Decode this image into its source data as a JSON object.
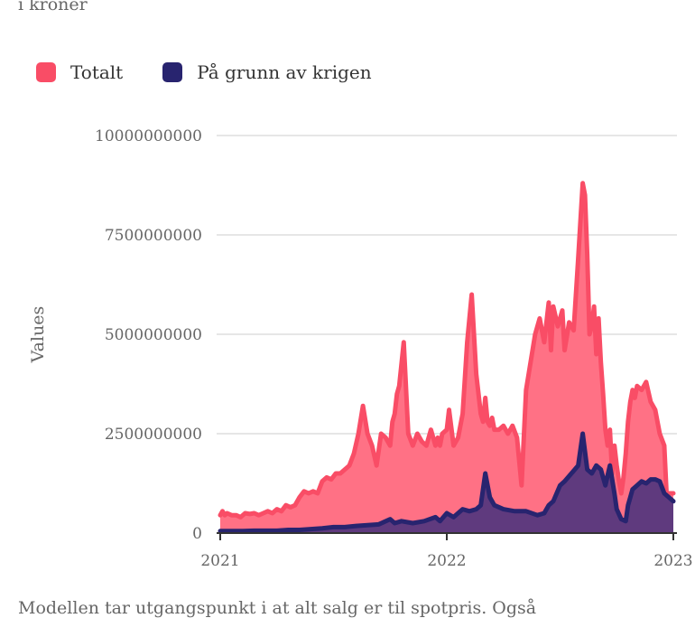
{
  "header": {
    "subtitle": "i kroner"
  },
  "footnote": "Modellen tar utgangspunkt i at alt salg er til spotpris. Også",
  "colors": {
    "total": "#f94d66",
    "total_fill": "#ff7185",
    "war": "#28246f",
    "war_fill": "#5f3a7e",
    "grid": "#dddddd"
  },
  "chart_data": {
    "type": "area",
    "subtitle": "i kroner",
    "ylabel": "Values",
    "xlabel": "",
    "ylim": [
      0,
      10000000000
    ],
    "yticks": [
      0,
      2500000000,
      5000000000,
      7500000000,
      10000000000
    ],
    "ytick_labels": [
      "0",
      "2500000000",
      "5000000000",
      "7500000000",
      "10000000000"
    ],
    "xlim": [
      2021.0,
      2023.0
    ],
    "xticks": [
      2021,
      2022,
      2023
    ],
    "xtick_labels": [
      "2021",
      "2022",
      "2023"
    ],
    "legend_position": "top-left",
    "grid": true,
    "series": [
      {
        "name": "Totalt",
        "color": "#f94d66",
        "x": [
          2021.0,
          2021.01,
          2021.02,
          2021.03,
          2021.05,
          2021.07,
          2021.09,
          2021.11,
          2021.13,
          2021.15,
          2021.17,
          2021.19,
          2021.21,
          2021.23,
          2021.25,
          2021.27,
          2021.29,
          2021.31,
          2021.33,
          2021.35,
          2021.37,
          2021.39,
          2021.41,
          2021.43,
          2021.45,
          2021.47,
          2021.49,
          2021.51,
          2021.53,
          2021.55,
          2021.57,
          2021.59,
          2021.61,
          2021.63,
          2021.65,
          2021.67,
          2021.69,
          2021.71,
          2021.73,
          2021.75,
          2021.76,
          2021.77,
          2021.78,
          2021.79,
          2021.81,
          2021.83,
          2021.85,
          2021.87,
          2021.89,
          2021.91,
          2021.93,
          2021.95,
          2021.96,
          2021.97,
          2021.98,
          2022.0,
          2022.01,
          2022.03,
          2022.05,
          2022.07,
          2022.09,
          2022.11,
          2022.13,
          2022.15,
          2022.16,
          2022.17,
          2022.18,
          2022.19,
          2022.2,
          2022.21,
          2022.23,
          2022.25,
          2022.27,
          2022.29,
          2022.31,
          2022.33,
          2022.35,
          2022.37,
          2022.39,
          2022.41,
          2022.43,
          2022.45,
          2022.46,
          2022.47,
          2022.49,
          2022.51,
          2022.52,
          2022.54,
          2022.56,
          2022.58,
          2022.6,
          2022.61,
          2022.62,
          2022.63,
          2022.64,
          2022.65,
          2022.66,
          2022.67,
          2022.68,
          2022.69,
          2022.7,
          2022.71,
          2022.72,
          2022.73,
          2022.74,
          2022.75,
          2022.76,
          2022.77,
          2022.78,
          2022.79,
          2022.8,
          2022.81,
          2022.82,
          2022.83,
          2022.84,
          2022.86,
          2022.88,
          2022.9,
          2022.92,
          2022.94,
          2022.96,
          2022.97,
          2022.98,
          2022.99,
          2023.0
        ],
        "y": [
          450000000,
          550000000,
          450000000,
          500000000,
          450000000,
          450000000,
          400000000,
          500000000,
          480000000,
          500000000,
          450000000,
          500000000,
          550000000,
          500000000,
          600000000,
          550000000,
          700000000,
          650000000,
          700000000,
          900000000,
          1050000000,
          1000000000,
          1050000000,
          1000000000,
          1300000000,
          1400000000,
          1350000000,
          1500000000,
          1500000000,
          1600000000,
          1700000000,
          2000000000,
          2500000000,
          3200000000,
          2500000000,
          2200000000,
          1700000000,
          2500000000,
          2400000000,
          2200000000,
          2800000000,
          3000000000,
          3500000000,
          3700000000,
          4800000000,
          2500000000,
          2200000000,
          2500000000,
          2300000000,
          2200000000,
          2600000000,
          2200000000,
          2400000000,
          2200000000,
          2500000000,
          2600000000,
          3100000000,
          2200000000,
          2400000000,
          3000000000,
          4800000000,
          6000000000,
          4000000000,
          3000000000,
          2800000000,
          3400000000,
          2800000000,
          2700000000,
          2900000000,
          2600000000,
          2600000000,
          2700000000,
          2500000000,
          2700000000,
          2400000000,
          1200000000,
          3600000000,
          4300000000,
          5000000000,
          5400000000,
          4800000000,
          5800000000,
          4600000000,
          5700000000,
          5200000000,
          5600000000,
          4600000000,
          5300000000,
          5100000000,
          6900000000,
          8800000000,
          8500000000,
          7000000000,
          5000000000,
          5200000000,
          5700000000,
          4500000000,
          5400000000,
          4300000000,
          3500000000,
          2600000000,
          2200000000,
          2600000000,
          1500000000,
          2200000000,
          1700000000,
          1300000000,
          1000000000,
          1400000000,
          2000000000,
          2800000000,
          3300000000,
          3600000000,
          3400000000,
          3700000000,
          3600000000,
          3800000000,
          3300000000,
          3100000000,
          2500000000,
          2200000000,
          1000000000,
          1000000000,
          1000000000,
          1000000000
        ],
        "y_unused": []
      },
      {
        "name": "På grunn av krigen",
        "color": "#28246f",
        "x": [
          2021.0,
          2021.05,
          2021.1,
          2021.15,
          2021.2,
          2021.25,
          2021.3,
          2021.35,
          2021.4,
          2021.45,
          2021.5,
          2021.55,
          2021.6,
          2021.65,
          2021.7,
          2021.75,
          2021.77,
          2021.8,
          2021.85,
          2021.9,
          2021.95,
          2021.97,
          2022.0,
          2022.03,
          2022.07,
          2022.1,
          2022.13,
          2022.15,
          2022.17,
          2022.19,
          2022.21,
          2022.25,
          2022.3,
          2022.35,
          2022.4,
          2022.43,
          2022.45,
          2022.47,
          2022.5,
          2022.52,
          2022.55,
          2022.58,
          2022.6,
          2022.62,
          2022.64,
          2022.66,
          2022.68,
          2022.7,
          2022.72,
          2022.74,
          2022.75,
          2022.77,
          2022.79,
          2022.8,
          2022.81,
          2022.82,
          2022.84,
          2022.86,
          2022.88,
          2022.9,
          2022.92,
          2022.94,
          2022.96,
          2022.98,
          2023.0
        ],
        "y": [
          50000000,
          50000000,
          50000000,
          60000000,
          60000000,
          60000000,
          80000000,
          80000000,
          100000000,
          120000000,
          150000000,
          150000000,
          180000000,
          200000000,
          220000000,
          350000000,
          250000000,
          300000000,
          250000000,
          300000000,
          400000000,
          300000000,
          500000000,
          400000000,
          600000000,
          550000000,
          600000000,
          700000000,
          1500000000,
          900000000,
          700000000,
          600000000,
          550000000,
          550000000,
          450000000,
          500000000,
          700000000,
          800000000,
          1200000000,
          1300000000,
          1500000000,
          1700000000,
          2500000000,
          1600000000,
          1500000000,
          1700000000,
          1600000000,
          1200000000,
          1700000000,
          1000000000,
          600000000,
          350000000,
          300000000,
          700000000,
          900000000,
          1100000000,
          1200000000,
          1300000000,
          1250000000,
          1350000000,
          1350000000,
          1300000000,
          1000000000,
          900000000,
          800000000
        ]
      }
    ]
  },
  "legend": {
    "items": [
      {
        "label": "Totalt"
      },
      {
        "label": "På grunn av krigen"
      }
    ]
  }
}
